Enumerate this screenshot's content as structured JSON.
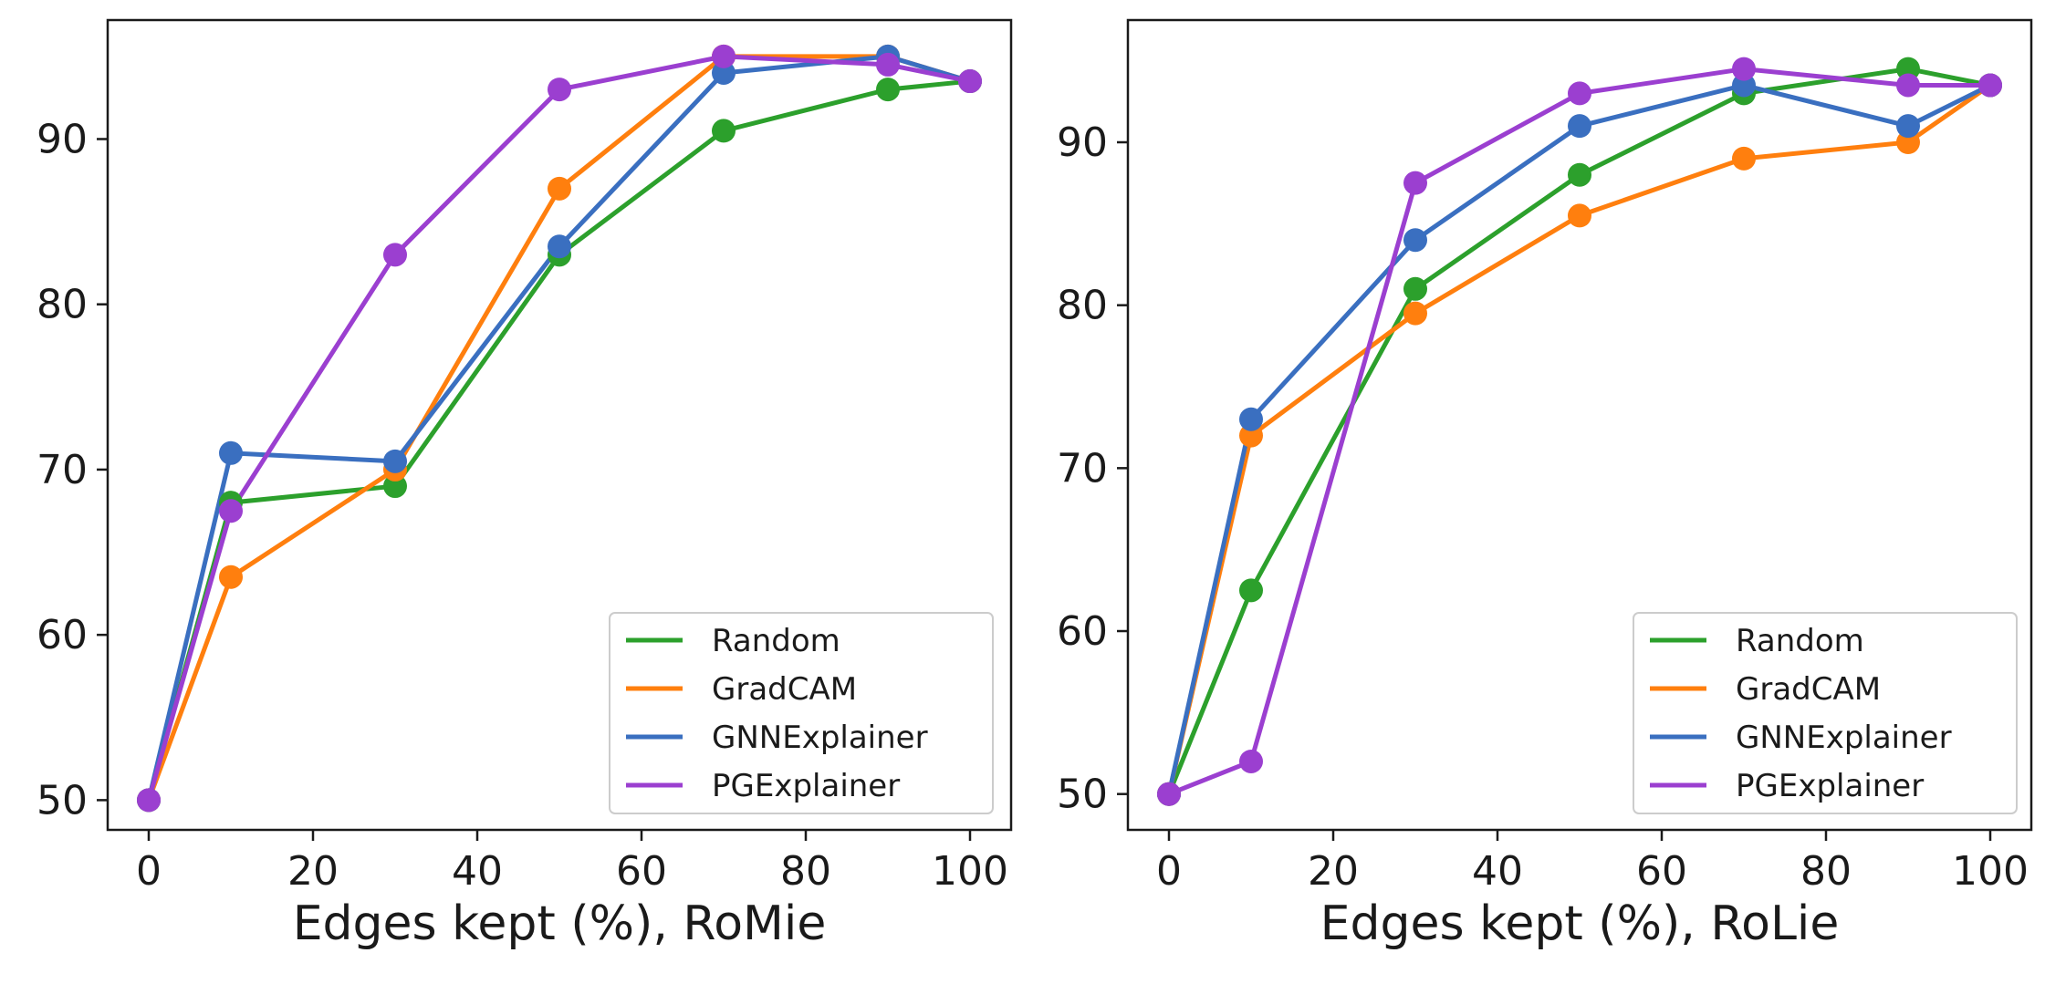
{
  "colors": {
    "Random": "#2ca02c",
    "GradCAM": "#ff7f0e",
    "GNNExplainer": "#3a6fc0",
    "PGExplainer": "#9b3fd0",
    "axis": "#1a1a1a",
    "background": "#ffffff",
    "legend_border": "#cccccc"
  },
  "chart_data": [
    {
      "type": "line",
      "title": "",
      "xlabel": "Edges kept (%), RoMie",
      "ylabel": "",
      "xlim": [
        -5,
        105
      ],
      "ylim": [
        48.2,
        97.2
      ],
      "xticks": [
        0,
        20,
        40,
        60,
        80,
        100
      ],
      "yticks": [
        50,
        60,
        70,
        80,
        90
      ],
      "grid": false,
      "legend_position": "lower-right",
      "x": [
        0,
        10,
        30,
        50,
        70,
        90,
        100
      ],
      "series": [
        {
          "name": "Random",
          "values": [
            50,
            68,
            69,
            83,
            90.5,
            93,
            93.5
          ]
        },
        {
          "name": "GradCAM",
          "values": [
            50,
            63.5,
            70,
            87,
            95,
            95,
            93.5
          ]
        },
        {
          "name": "GNNExplainer",
          "values": [
            50,
            71,
            70.5,
            83.5,
            94,
            95,
            93.5
          ]
        },
        {
          "name": "PGExplainer",
          "values": [
            50,
            67.5,
            83,
            93,
            95,
            94.5,
            93.5
          ]
        }
      ]
    },
    {
      "type": "line",
      "title": "",
      "xlabel": "Edges kept (%), RoLie",
      "ylabel": "",
      "xlim": [
        -5,
        105
      ],
      "ylim": [
        47.8,
        97.5
      ],
      "xticks": [
        0,
        20,
        40,
        60,
        80,
        100
      ],
      "yticks": [
        50,
        60,
        70,
        80,
        90
      ],
      "grid": false,
      "legend_position": "lower-right",
      "x": [
        0,
        10,
        30,
        50,
        70,
        90,
        100
      ],
      "series": [
        {
          "name": "Random",
          "values": [
            50,
            62.5,
            81,
            88,
            93,
            94.5,
            93.5
          ]
        },
        {
          "name": "GradCAM",
          "values": [
            50,
            72,
            79.5,
            85.5,
            89,
            90,
            93.5
          ]
        },
        {
          "name": "GNNExplainer",
          "values": [
            50,
            73,
            84,
            91,
            93.5,
            91,
            93.5
          ]
        },
        {
          "name": "PGExplainer",
          "values": [
            50,
            52,
            87.5,
            93,
            94.5,
            93.5,
            93.5
          ]
        }
      ]
    }
  ]
}
